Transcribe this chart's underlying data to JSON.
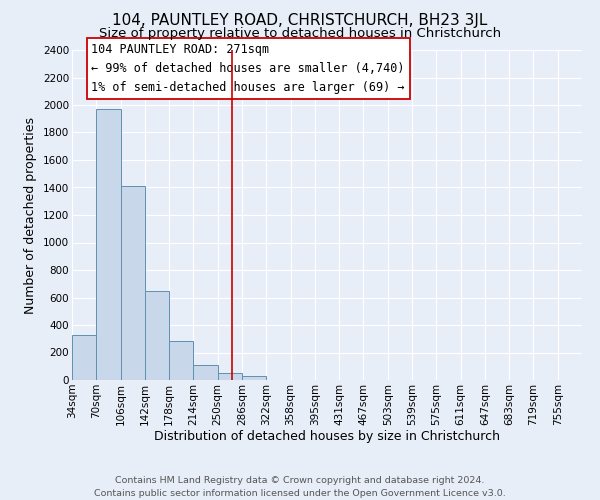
{
  "title": "104, PAUNTLEY ROAD, CHRISTCHURCH, BH23 3JL",
  "subtitle": "Size of property relative to detached houses in Christchurch",
  "xlabel": "Distribution of detached houses by size in Christchurch",
  "ylabel": "Number of detached properties",
  "footnote1": "Contains HM Land Registry data © Crown copyright and database right 2024.",
  "footnote2": "Contains public sector information licensed under the Open Government Licence v3.0.",
  "bar_labels": [
    "34sqm",
    "70sqm",
    "106sqm",
    "142sqm",
    "178sqm",
    "214sqm",
    "250sqm",
    "286sqm",
    "322sqm",
    "358sqm",
    "395sqm",
    "431sqm",
    "467sqm",
    "503sqm",
    "539sqm",
    "575sqm",
    "611sqm",
    "647sqm",
    "683sqm",
    "719sqm",
    "755sqm"
  ],
  "bar_values": [
    330,
    1970,
    1410,
    650,
    285,
    110,
    50,
    30,
    0,
    0,
    0,
    0,
    0,
    0,
    0,
    0,
    0,
    0,
    0,
    0,
    0
  ],
  "bar_color": "#c8d8ea",
  "bar_edge_color": "#6090b0",
  "ylim": [
    0,
    2400
  ],
  "yticks": [
    0,
    200,
    400,
    600,
    800,
    1000,
    1200,
    1400,
    1600,
    1800,
    2000,
    2200,
    2400
  ],
  "vline_color": "#cc0000",
  "annotation_title": "104 PAUNTLEY ROAD: 271sqm",
  "annotation_line2": "← 99% of detached houses are smaller (4,740)",
  "annotation_line3": "1% of semi-detached houses are larger (69) →",
  "background_color": "#e8eef8",
  "grid_color": "#ffffff",
  "title_fontsize": 11,
  "subtitle_fontsize": 9.5,
  "axis_label_fontsize": 9,
  "tick_fontsize": 7.5,
  "annotation_fontsize": 8.5,
  "footnote_fontsize": 6.8
}
